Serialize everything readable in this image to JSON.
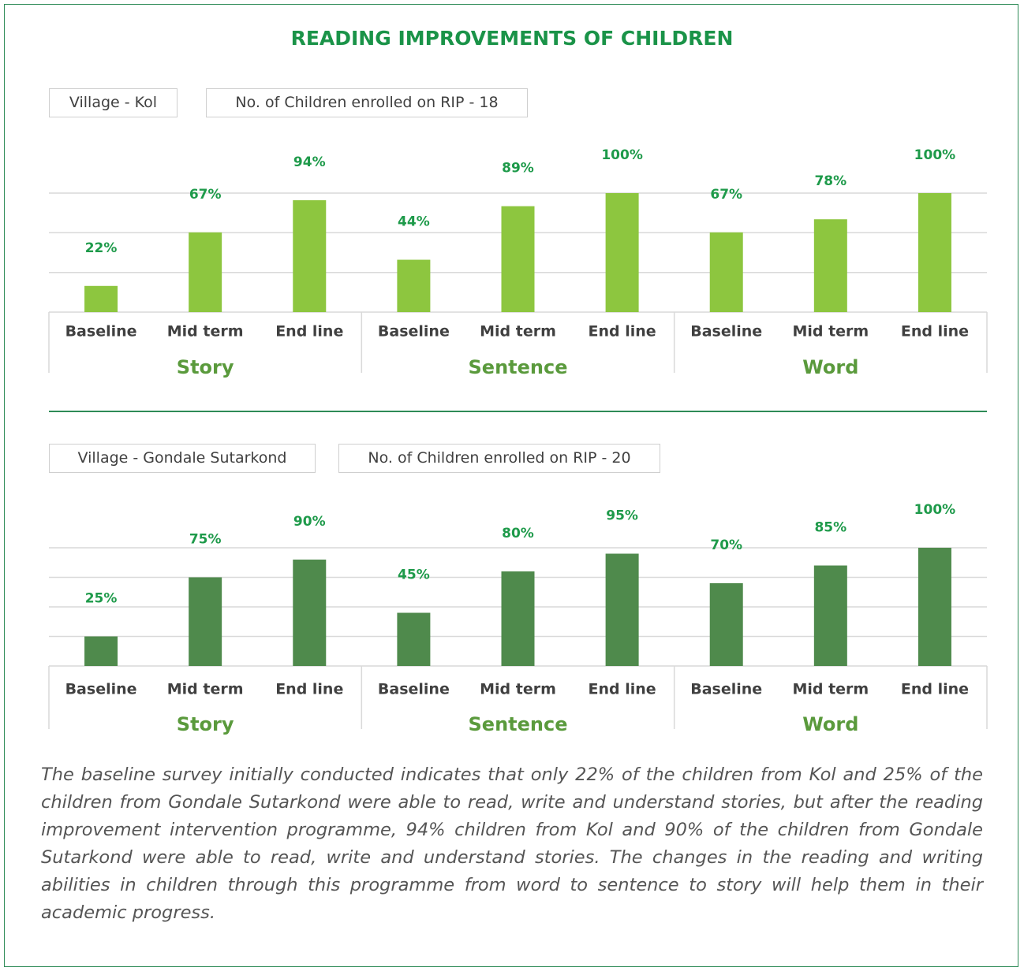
{
  "title": "READING IMPROVEMENTS OF CHILDREN",
  "chart_data": [
    {
      "type": "bar",
      "village": "Village - Kol",
      "enrolled": "No. of Children enrolled on RIP - 18",
      "categories": [
        "Baseline",
        "Mid term",
        "End line",
        "Baseline",
        "Mid term",
        "End line",
        "Baseline",
        "Mid term",
        "End line"
      ],
      "category_groups": [
        "Story",
        "Sentence",
        "Word"
      ],
      "values": [
        22,
        67,
        94,
        44,
        89,
        100,
        67,
        78,
        100
      ],
      "value_labels": [
        "22%",
        "67%",
        "94%",
        "44%",
        "89%",
        "100%",
        "67%",
        "78%",
        "100%"
      ],
      "color": "#8dc63f",
      "ylim": [
        0,
        100
      ],
      "yticks": [
        0,
        33.3,
        66.7,
        100
      ],
      "grid": true
    },
    {
      "type": "bar",
      "village": "Village - Gondale Sutarkond",
      "enrolled": "No. of Children enrolled on RIP - 20",
      "categories": [
        "Baseline",
        "Mid term",
        "End line",
        "Baseline",
        "Mid term",
        "End line",
        "Baseline",
        "Mid term",
        "End line"
      ],
      "category_groups": [
        "Story",
        "Sentence",
        "Word"
      ],
      "values": [
        25,
        75,
        90,
        45,
        80,
        95,
        70,
        85,
        100
      ],
      "value_labels": [
        "25%",
        "75%",
        "90%",
        "45%",
        "80%",
        "95%",
        "70%",
        "85%",
        "100%"
      ],
      "color": "#4f8a4c",
      "ylim": [
        0,
        100
      ],
      "yticks": [
        0,
        25,
        50,
        75,
        100
      ],
      "grid": true
    }
  ],
  "note": "The baseline survey initially conducted indicates that only 22% of the children from Kol and 25% of the children from Gondale Sutarkond were able to read, write and understand stories, but after the reading improvement intervention programme, 94% children from Kol and 90% of the children from Gondale Sutarkond were able to read, write and understand stories. The changes in the reading and writing abilities in children through this programme from word to sentence to story will help them in their academic progress."
}
